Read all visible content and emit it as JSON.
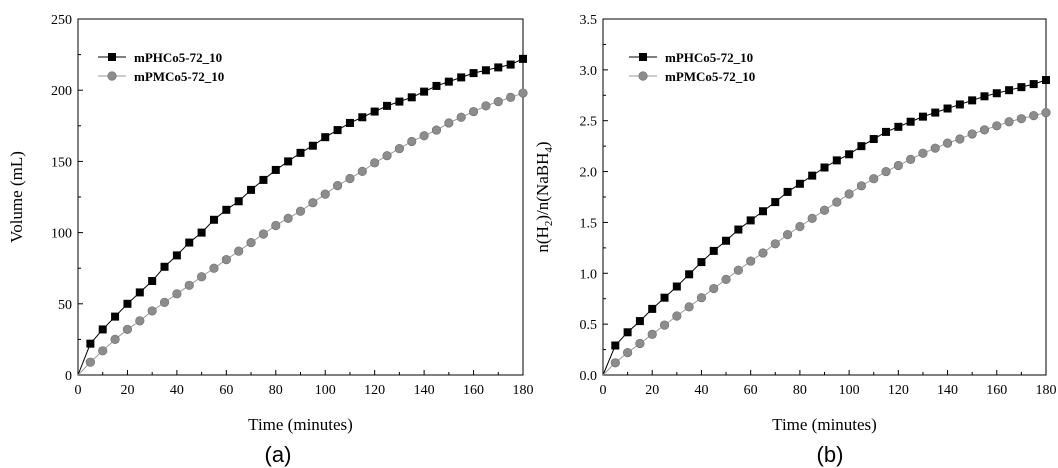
{
  "chart_data": [
    {
      "type": "line",
      "panel": "(a)",
      "xlabel": "Time (minutes)",
      "ylabel": "Volume (mL)",
      "xlim": [
        0,
        180
      ],
      "ylim": [
        0,
        250
      ],
      "xticks": [
        0,
        20,
        40,
        60,
        80,
        100,
        120,
        140,
        160,
        180
      ],
      "yticks": [
        0,
        50,
        100,
        150,
        200,
        250
      ],
      "legend_position": "top-left",
      "grid": false,
      "x": [
        0,
        5,
        10,
        15,
        20,
        25,
        30,
        35,
        40,
        45,
        50,
        55,
        60,
        65,
        70,
        75,
        80,
        85,
        90,
        95,
        100,
        105,
        110,
        115,
        120,
        125,
        130,
        135,
        140,
        145,
        150,
        155,
        160,
        165,
        170,
        175,
        180
      ],
      "series": [
        {
          "name": "mPHCo5-72_10",
          "marker": "square",
          "color": "#000000",
          "values": [
            0,
            22,
            32,
            41,
            50,
            58,
            66,
            76,
            84,
            93,
            100,
            109,
            116,
            122,
            130,
            137,
            144,
            150,
            156,
            161,
            167,
            172,
            177,
            181,
            185,
            189,
            192,
            195,
            199,
            203,
            206,
            209,
            212,
            214,
            216,
            218,
            222
          ]
        },
        {
          "name": "mPMCo5-72_10",
          "marker": "circle",
          "color": "#8c8c8c",
          "values": [
            0,
            9,
            17,
            25,
            32,
            38,
            45,
            51,
            57,
            63,
            69,
            75,
            81,
            87,
            93,
            99,
            105,
            110,
            115,
            121,
            127,
            133,
            138,
            143,
            149,
            154,
            159,
            164,
            168,
            172,
            177,
            181,
            185,
            189,
            192,
            195,
            198
          ]
        }
      ]
    },
    {
      "type": "line",
      "panel": "(b)",
      "xlabel": "Time (minutes)",
      "ylabel_parts": [
        "n(H",
        "2",
        ")/n(NaBH",
        "4",
        ")"
      ],
      "xlim": [
        0,
        180
      ],
      "ylim": [
        0,
        3.5
      ],
      "xticks": [
        0,
        20,
        40,
        60,
        80,
        100,
        120,
        140,
        160,
        180
      ],
      "yticks": [
        0.0,
        0.5,
        1.0,
        1.5,
        2.0,
        2.5,
        3.0,
        3.5
      ],
      "ytick_labels": [
        "0.0",
        "0.5",
        "1.0",
        "1.5",
        "2.0",
        "2.5",
        "3.0",
        "3.5"
      ],
      "legend_position": "top-left",
      "grid": false,
      "x": [
        0,
        5,
        10,
        15,
        20,
        25,
        30,
        35,
        40,
        45,
        50,
        55,
        60,
        65,
        70,
        75,
        80,
        85,
        90,
        95,
        100,
        105,
        110,
        115,
        120,
        125,
        130,
        135,
        140,
        145,
        150,
        155,
        160,
        165,
        170,
        175,
        180
      ],
      "series": [
        {
          "name": "mPHCo5-72_10",
          "marker": "square",
          "color": "#000000",
          "values": [
            0,
            0.29,
            0.42,
            0.53,
            0.65,
            0.76,
            0.87,
            0.99,
            1.11,
            1.22,
            1.32,
            1.43,
            1.52,
            1.61,
            1.7,
            1.8,
            1.88,
            1.96,
            2.04,
            2.11,
            2.17,
            2.25,
            2.32,
            2.39,
            2.44,
            2.49,
            2.54,
            2.58,
            2.62,
            2.66,
            2.7,
            2.74,
            2.77,
            2.8,
            2.83,
            2.86,
            2.9
          ]
        },
        {
          "name": "mPMCo5-72_10",
          "marker": "circle",
          "color": "#8c8c8c",
          "values": [
            0,
            0.12,
            0.22,
            0.31,
            0.4,
            0.49,
            0.58,
            0.67,
            0.76,
            0.85,
            0.94,
            1.03,
            1.12,
            1.2,
            1.29,
            1.38,
            1.46,
            1.54,
            1.62,
            1.7,
            1.78,
            1.86,
            1.93,
            2.0,
            2.06,
            2.12,
            2.18,
            2.23,
            2.28,
            2.32,
            2.37,
            2.41,
            2.45,
            2.49,
            2.52,
            2.55,
            2.58
          ]
        }
      ]
    }
  ]
}
